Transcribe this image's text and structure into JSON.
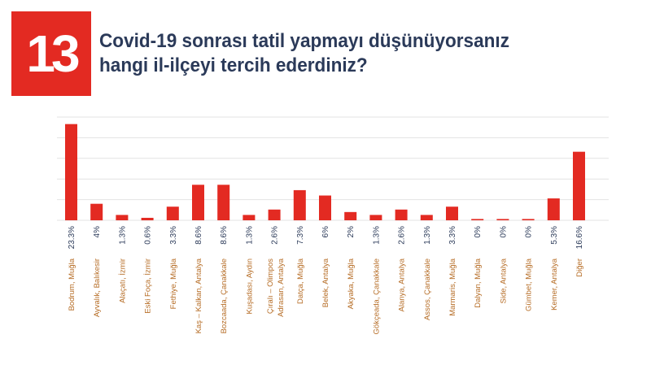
{
  "header": {
    "number": "13",
    "title_line1": "Covid-19 sonrası tatil yapmayı düşünüyorsanız",
    "title_line2": "hangi il-ilçeyi tercih ederdiniz?"
  },
  "colors": {
    "badge": "#e32a22",
    "bar": "#e32a22",
    "title": "#2b3a59",
    "value_label": "#2b3a59",
    "category_label": "#b56b23",
    "grid": "#e3e3e3"
  },
  "chart_data": {
    "type": "bar",
    "title": "Covid-19 sonrası tatil yapmayı düşünüyorsanız hangi il-ilçeyi tercih ederdiniz?",
    "xlabel": "",
    "ylabel": "",
    "ylim": [
      0,
      25
    ],
    "grid": true,
    "legend": "none",
    "categories": [
      "Bodrum, Muğla",
      "Ayvalık, Balıkesir",
      "Alaçatı, İzmir",
      "Eski Foça, İzmir",
      "Fethiye, Muğla",
      "Kaş – Kalkan, Antalya",
      "Bozcaada, Çanakkale",
      "Kuşadası, Aydın",
      "Çıralı – Olimpos\nAdrasan, Antalya",
      "Datça, Muğla",
      "Belek, Antalya",
      "Akyaka, Muğla",
      "Gökçeada, Çanakkale",
      "Alanya, Antalya",
      "Assos, Çanakkale",
      "Marmaris, Muğla",
      "Dalyan, Muğla",
      "Side, Antalya",
      "Gümbet, Muğla",
      "Kemer, Antalya",
      "Diğer"
    ],
    "values": [
      23.3,
      4,
      1.3,
      0.6,
      3.3,
      8.6,
      8.6,
      1.3,
      2.6,
      7.3,
      6,
      2,
      1.3,
      2.6,
      1.3,
      3.3,
      0,
      0,
      0,
      5.3,
      16.6
    ],
    "value_labels": [
      "23.3%",
      "4%",
      "1.3%",
      "0.6%",
      "3.3%",
      "8.6%",
      "8.6%",
      "1.3%",
      "2.6%",
      "7.3%",
      "6%",
      "2%",
      "1.3%",
      "2.6%",
      "1.3%",
      "3.3%",
      "0%",
      "0%",
      "0%",
      "5.3%",
      "16.6%"
    ]
  }
}
